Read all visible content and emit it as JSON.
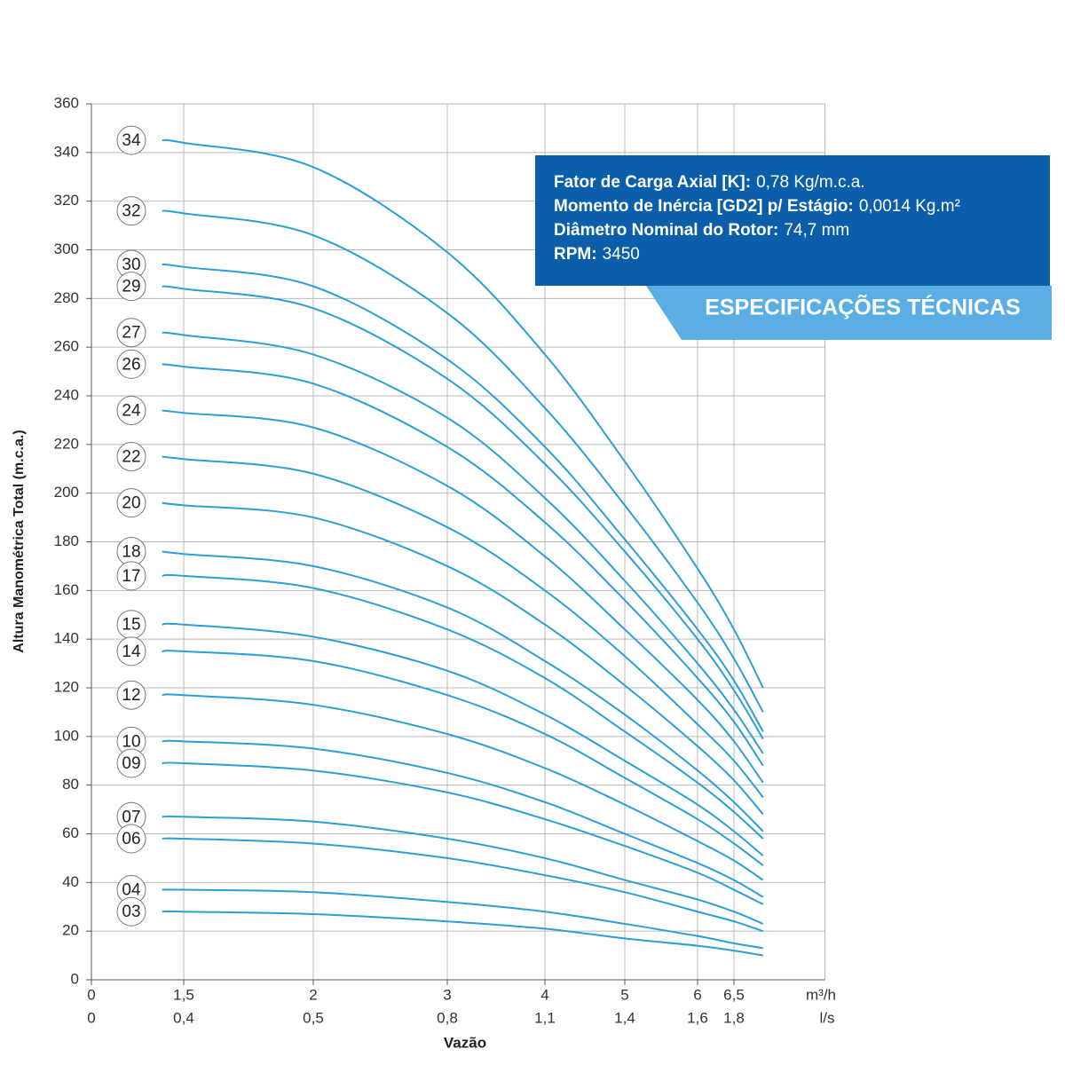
{
  "chart_data": {
    "type": "line",
    "y_label": "Altura Manométrica Total (m.c.a.)",
    "x_label": "Vazão",
    "x_unit": "m³/h",
    "x2_unit": "l/s",
    "ylim": [
      0,
      360
    ],
    "yticks": [
      0,
      20,
      40,
      60,
      80,
      100,
      120,
      140,
      160,
      180,
      200,
      220,
      240,
      260,
      280,
      300,
      320,
      340,
      360
    ],
    "xlim": [
      0,
      7.75
    ],
    "xticks": [
      0,
      {
        "value": 1.5,
        "label": "1,5"
      },
      2,
      3,
      4,
      5,
      6,
      {
        "value": 6.5,
        "label": "6,5"
      }
    ],
    "x2ticks": [
      0,
      {
        "value": 0.4,
        "label": "0,4"
      },
      {
        "value": 0.5,
        "label": "0,5"
      },
      {
        "value": 0.8,
        "label": "0,8"
      },
      {
        "value": 1.1,
        "label": "1,1"
      },
      {
        "value": 1.4,
        "label": "1,4"
      },
      {
        "value": 1.6,
        "label": "1,6"
      },
      {
        "value": 1.8,
        "label": "1,8"
      }
    ],
    "grid": true,
    "x": [
      1.15,
      1.5,
      2,
      3,
      4,
      5,
      6,
      6.5,
      6.9
    ],
    "series": [
      {
        "name": "34",
        "color": "#2a9fd6",
        "values": [
          345,
          344,
          334,
          299,
          257,
          213,
          169,
          144,
          120
        ]
      },
      {
        "name": "32",
        "color": "#2a9fd6",
        "values": [
          316,
          315,
          306,
          274,
          235,
          195,
          155,
          132,
          110
        ]
      },
      {
        "name": "30",
        "color": "#2a9fd6",
        "values": [
          294,
          293,
          285,
          255,
          219,
          181,
          144,
          123,
          102
        ]
      },
      {
        "name": "29",
        "color": "#2a9fd6",
        "values": [
          285,
          284,
          276,
          247,
          212,
          176,
          140,
          119,
          99
        ]
      },
      {
        "name": "27",
        "color": "#2a9fd6",
        "values": [
          266,
          265,
          257,
          231,
          198,
          164,
          130,
          111,
          93
        ]
      },
      {
        "name": "26",
        "color": "#2a9fd6",
        "values": [
          253,
          252,
          245,
          219,
          188,
          156,
          124,
          106,
          88
        ]
      },
      {
        "name": "24",
        "color": "#2a9fd6",
        "values": [
          234,
          233,
          227,
          203,
          174,
          144,
          115,
          98,
          81
        ]
      },
      {
        "name": "22",
        "color": "#2a9fd6",
        "values": [
          215,
          214,
          208,
          186,
          160,
          133,
          105,
          90,
          75
        ]
      },
      {
        "name": "20",
        "color": "#2a9fd6",
        "values": [
          196,
          195,
          190,
          170,
          146,
          121,
          96,
          82,
          68
        ]
      },
      {
        "name": "18",
        "color": "#2a9fd6",
        "values": [
          176,
          175,
          170,
          153,
          131,
          109,
          86,
          73,
          61
        ]
      },
      {
        "name": "17",
        "color": "#2a9fd6",
        "values": [
          166,
          166,
          161,
          144,
          124,
          102,
          81,
          69,
          58
        ]
      },
      {
        "name": "15",
        "color": "#2a9fd6",
        "values": [
          146,
          146,
          141,
          127,
          109,
          90,
          72,
          61,
          51
        ]
      },
      {
        "name": "14",
        "color": "#2a9fd6",
        "values": [
          135,
          135,
          131,
          117,
          101,
          83,
          66,
          56,
          47
        ]
      },
      {
        "name": "12",
        "color": "#2a9fd6",
        "values": [
          117,
          117,
          113,
          101,
          87,
          72,
          57,
          49,
          41
        ]
      },
      {
        "name": "10",
        "color": "#2a9fd6",
        "values": [
          98,
          98,
          95,
          85,
          73,
          60,
          48,
          41,
          34
        ]
      },
      {
        "name": "09",
        "color": "#2a9fd6",
        "values": [
          89,
          89,
          86,
          77,
          66,
          55,
          44,
          37,
          31
        ]
      },
      {
        "name": "07",
        "color": "#2a9fd6",
        "values": [
          67,
          67,
          65,
          58,
          50,
          41,
          33,
          28,
          23
        ]
      },
      {
        "name": "06",
        "color": "#2a9fd6",
        "values": [
          58,
          58,
          56,
          50,
          43,
          36,
          28,
          24,
          20
        ]
      },
      {
        "name": "04",
        "color": "#2a9fd6",
        "values": [
          37,
          37,
          36,
          32,
          28,
          23,
          18,
          15,
          13
        ]
      },
      {
        "name": "03",
        "color": "#2a9fd6",
        "values": [
          28,
          28,
          27,
          24,
          21,
          17,
          14,
          12,
          10
        ]
      }
    ]
  },
  "specs": {
    "title": "ESPECIFICAÇÕES TÉCNICAS",
    "items": [
      {
        "label": "Fator de Carga Axial [K]:",
        "value": "0,78 Kg/m.c.a."
      },
      {
        "label": "Momento de Inércia [GD2] p/ Estágio:",
        "value": "0,0014 Kg.m²"
      },
      {
        "label": "Diâmetro Nominal do Rotor:",
        "value": "74,7 mm"
      },
      {
        "label": "RPM:",
        "value": "3450"
      }
    ]
  }
}
